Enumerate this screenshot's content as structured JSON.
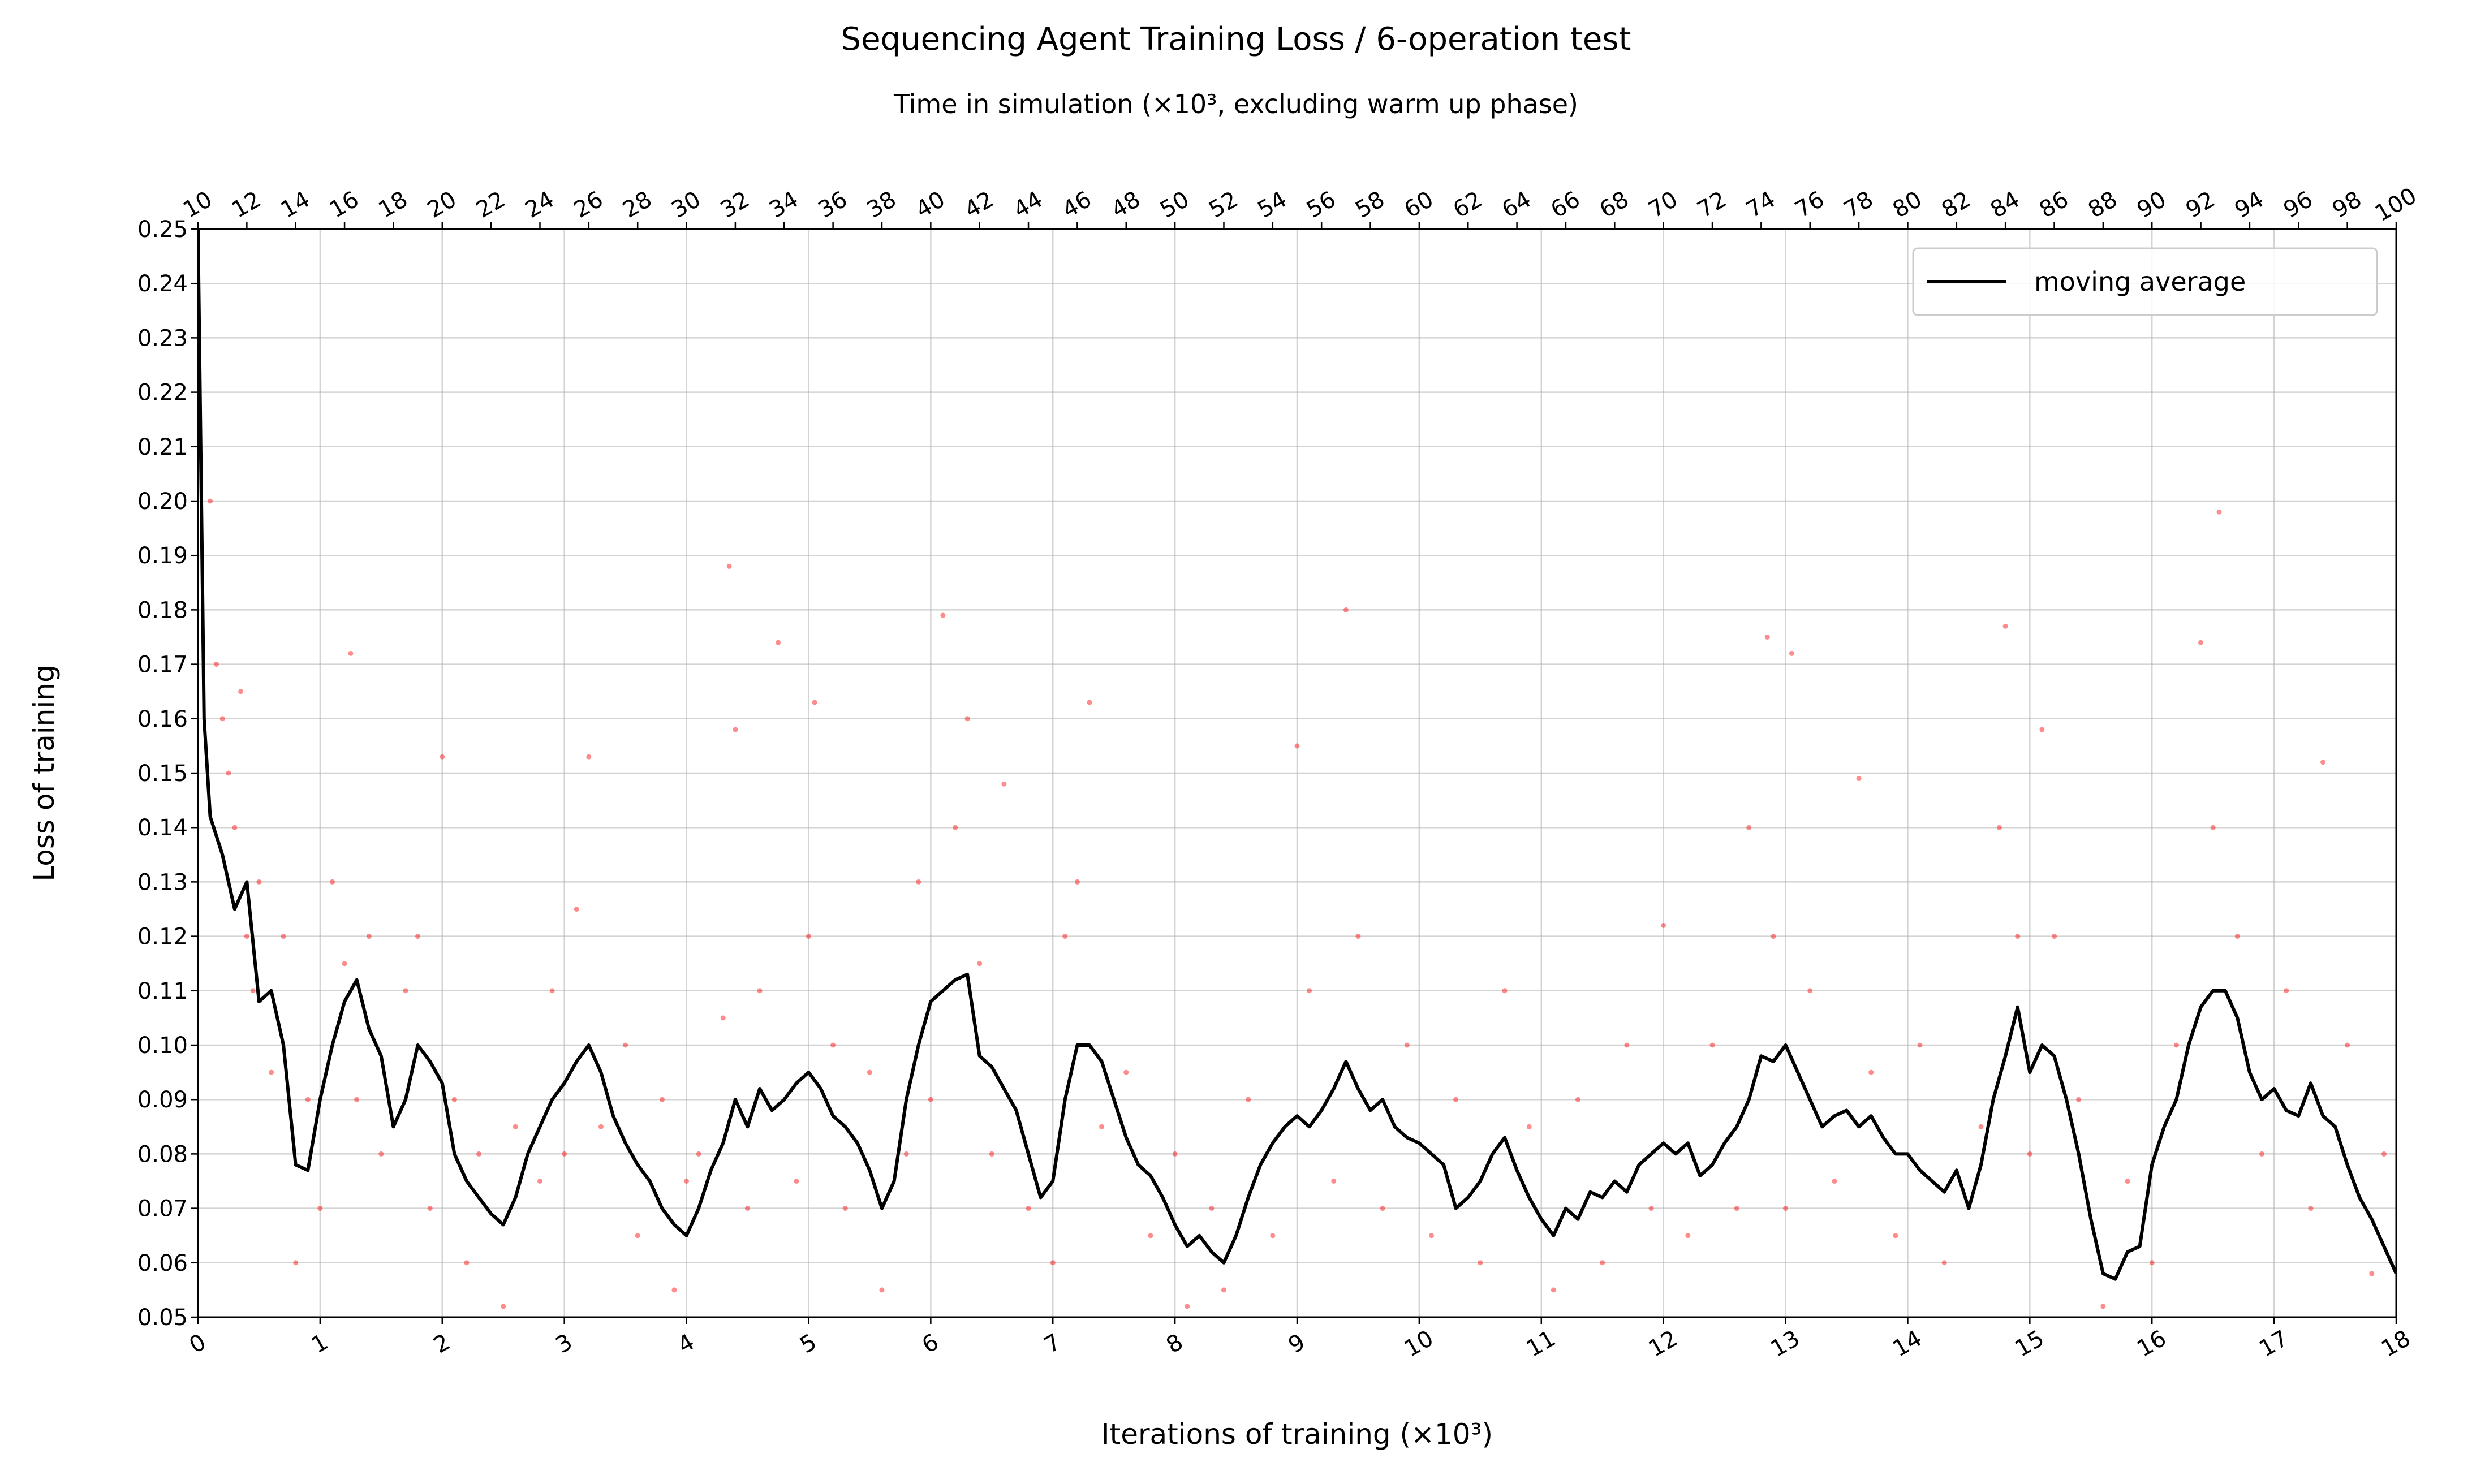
{
  "chart_data": {
    "type": "line",
    "title": "Sequencing Agent Training Loss / 6-operation test",
    "x2label": "Time in simulation (×10³, excluding warm up phase)",
    "xlabel": "Iterations of training (×10³)",
    "ylabel": "Loss of training",
    "xlim": [
      0,
      18
    ],
    "xticks": [
      0,
      1,
      2,
      3,
      4,
      5,
      6,
      7,
      8,
      9,
      10,
      11,
      12,
      13,
      14,
      15,
      16,
      17,
      18
    ],
    "x2lim": [
      10,
      100
    ],
    "x2ticks": [
      10,
      12,
      14,
      16,
      18,
      20,
      22,
      24,
      26,
      28,
      30,
      32,
      34,
      36,
      38,
      40,
      42,
      44,
      46,
      48,
      50,
      52,
      54,
      56,
      58,
      60,
      62,
      64,
      66,
      68,
      70,
      72,
      74,
      76,
      78,
      80,
      82,
      84,
      86,
      88,
      90,
      92,
      94,
      96,
      98,
      100
    ],
    "ylim": [
      0.05,
      0.25
    ],
    "yticks": [
      0.05,
      0.06,
      0.07,
      0.08,
      0.09,
      {
        "value": 0.1,
        "label": "0.10"
      },
      0.11,
      0.12,
      0.13,
      0.14,
      0.15,
      0.16,
      0.17,
      0.18,
      0.19,
      {
        "value": 0.2,
        "label": "0.20"
      },
      0.21,
      0.22,
      0.23,
      0.24,
      0.25
    ],
    "grid": true,
    "legend": "upper right",
    "series": [
      {
        "type": "scatter",
        "color": "#ff0000",
        "x": [
          0.1,
          0.15,
          0.2,
          0.25,
          0.3,
          0.35,
          0.4,
          0.45,
          0.5,
          0.6,
          0.7,
          0.8,
          0.9,
          1.0,
          1.1,
          1.2,
          1.25,
          1.3,
          1.4,
          1.5,
          1.7,
          1.8,
          1.9,
          2.0,
          2.1,
          2.2,
          2.3,
          2.5,
          2.6,
          2.8,
          2.9,
          3.0,
          3.1,
          3.2,
          3.3,
          3.5,
          3.6,
          3.8,
          3.9,
          4.0,
          4.1,
          4.3,
          4.35,
          4.4,
          4.5,
          4.6,
          4.75,
          4.9,
          5.0,
          5.05,
          5.2,
          5.3,
          5.5,
          5.6,
          5.8,
          5.9,
          6.0,
          6.1,
          6.2,
          6.3,
          6.4,
          6.5,
          6.6,
          6.8,
          7.0,
          7.1,
          7.2,
          7.3,
          7.4,
          7.6,
          7.8,
          8.0,
          8.1,
          8.3,
          8.4,
          8.6,
          8.8,
          9.0,
          9.1,
          9.3,
          9.4,
          9.5,
          9.7,
          9.9,
          10.1,
          10.3,
          10.5,
          10.7,
          10.9,
          11.1,
          11.3,
          11.5,
          11.7,
          11.9,
          12.0,
          12.2,
          12.4,
          12.6,
          12.7,
          12.85,
          12.9,
          13.0,
          13.05,
          13.2,
          13.4,
          13.6,
          13.7,
          13.9,
          14.1,
          14.3,
          14.6,
          14.75,
          14.8,
          14.9,
          15.0,
          15.1,
          15.2,
          15.4,
          15.6,
          15.8,
          16.0,
          16.2,
          16.4,
          16.5,
          16.55,
          16.7,
          16.9,
          17.1,
          17.3,
          17.4,
          17.6,
          17.8,
          17.9
        ],
        "values": [
          0.2,
          0.17,
          0.16,
          0.15,
          0.14,
          0.165,
          0.12,
          0.11,
          0.13,
          0.095,
          0.12,
          0.06,
          0.09,
          0.07,
          0.13,
          0.115,
          0.172,
          0.09,
          0.12,
          0.08,
          0.11,
          0.12,
          0.07,
          0.153,
          0.09,
          0.06,
          0.08,
          0.052,
          0.085,
          0.075,
          0.11,
          0.08,
          0.125,
          0.153,
          0.085,
          0.1,
          0.065,
          0.09,
          0.055,
          0.075,
          0.08,
          0.105,
          0.188,
          0.158,
          0.07,
          0.11,
          0.174,
          0.075,
          0.12,
          0.163,
          0.1,
          0.07,
          0.095,
          0.055,
          0.08,
          0.13,
          0.09,
          0.179,
          0.14,
          0.16,
          0.115,
          0.08,
          0.148,
          0.07,
          0.06,
          0.12,
          0.13,
          0.163,
          0.085,
          0.095,
          0.065,
          0.08,
          0.052,
          0.07,
          0.055,
          0.09,
          0.065,
          0.155,
          0.11,
          0.075,
          0.18,
          0.12,
          0.07,
          0.1,
          0.065,
          0.09,
          0.06,
          0.11,
          0.085,
          0.055,
          0.09,
          0.06,
          0.1,
          0.07,
          0.122,
          0.065,
          0.1,
          0.07,
          0.14,
          0.175,
          0.12,
          0.07,
          0.172,
          0.11,
          0.075,
          0.149,
          0.095,
          0.065,
          0.1,
          0.06,
          0.085,
          0.14,
          0.177,
          0.12,
          0.08,
          0.158,
          0.12,
          0.09,
          0.052,
          0.075,
          0.06,
          0.1,
          0.174,
          0.14,
          0.198,
          0.12,
          0.08,
          0.11,
          0.07,
          0.152,
          0.1,
          0.058,
          0.08
        ]
      },
      {
        "type": "line",
        "name": "moving average",
        "color": "#000000",
        "x": [
          0,
          0.05,
          0.1,
          0.2,
          0.3,
          0.4,
          0.5,
          0.6,
          0.7,
          0.8,
          0.9,
          1.0,
          1.1,
          1.2,
          1.3,
          1.4,
          1.5,
          1.6,
          1.7,
          1.8,
          1.9,
          2.0,
          2.1,
          2.2,
          2.3,
          2.4,
          2.5,
          2.6,
          2.7,
          2.8,
          2.9,
          3.0,
          3.1,
          3.2,
          3.3,
          3.4,
          3.5,
          3.6,
          3.7,
          3.8,
          3.9,
          4.0,
          4.1,
          4.2,
          4.3,
          4.4,
          4.5,
          4.6,
          4.7,
          4.8,
          4.9,
          5.0,
          5.1,
          5.2,
          5.3,
          5.4,
          5.5,
          5.6,
          5.7,
          5.8,
          5.9,
          6.0,
          6.1,
          6.2,
          6.3,
          6.4,
          6.5,
          6.6,
          6.7,
          6.8,
          6.9,
          7.0,
          7.1,
          7.2,
          7.3,
          7.4,
          7.5,
          7.6,
          7.7,
          7.8,
          7.9,
          8.0,
          8.1,
          8.2,
          8.3,
          8.4,
          8.5,
          8.6,
          8.7,
          8.8,
          8.9,
          9.0,
          9.1,
          9.2,
          9.3,
          9.4,
          9.5,
          9.6,
          9.7,
          9.8,
          9.9,
          10.0,
          10.1,
          10.2,
          10.3,
          10.4,
          10.5,
          10.6,
          10.7,
          10.8,
          10.9,
          11.0,
          11.1,
          11.2,
          11.3,
          11.4,
          11.5,
          11.6,
          11.7,
          11.8,
          11.9,
          12.0,
          12.1,
          12.2,
          12.3,
          12.4,
          12.5,
          12.6,
          12.7,
          12.8,
          12.9,
          13.0,
          13.1,
          13.2,
          13.3,
          13.4,
          13.5,
          13.6,
          13.7,
          13.8,
          13.9,
          14.0,
          14.1,
          14.2,
          14.3,
          14.4,
          14.5,
          14.6,
          14.7,
          14.8,
          14.9,
          15.0,
          15.1,
          15.2,
          15.3,
          15.4,
          15.5,
          15.6,
          15.7,
          15.8,
          15.9,
          16.0,
          16.1,
          16.2,
          16.3,
          16.4,
          16.5,
          16.6,
          16.7,
          16.8,
          16.9,
          17.0,
          17.1,
          17.2,
          17.3,
          17.4,
          17.5,
          17.6,
          17.7,
          17.8,
          17.9,
          18.0
        ],
        "values": [
          0.25,
          0.16,
          0.142,
          0.135,
          0.125,
          0.13,
          0.108,
          0.11,
          0.1,
          0.078,
          0.077,
          0.09,
          0.1,
          0.108,
          0.112,
          0.103,
          0.098,
          0.085,
          0.09,
          0.1,
          0.097,
          0.093,
          0.08,
          0.075,
          0.072,
          0.069,
          0.067,
          0.072,
          0.08,
          0.085,
          0.09,
          0.093,
          0.097,
          0.1,
          0.095,
          0.087,
          0.082,
          0.078,
          0.075,
          0.07,
          0.067,
          0.065,
          0.07,
          0.077,
          0.082,
          0.09,
          0.085,
          0.092,
          0.088,
          0.09,
          0.093,
          0.095,
          0.092,
          0.087,
          0.085,
          0.082,
          0.077,
          0.07,
          0.075,
          0.09,
          0.1,
          0.108,
          0.11,
          0.112,
          0.113,
          0.098,
          0.096,
          0.092,
          0.088,
          0.08,
          0.072,
          0.075,
          0.09,
          0.1,
          0.1,
          0.097,
          0.09,
          0.083,
          0.078,
          0.076,
          0.072,
          0.067,
          0.063,
          0.065,
          0.062,
          0.06,
          0.065,
          0.072,
          0.078,
          0.082,
          0.085,
          0.087,
          0.085,
          0.088,
          0.092,
          0.097,
          0.092,
          0.088,
          0.09,
          0.085,
          0.083,
          0.082,
          0.08,
          0.078,
          0.07,
          0.072,
          0.075,
          0.08,
          0.083,
          0.077,
          0.072,
          0.068,
          0.065,
          0.07,
          0.068,
          0.073,
          0.072,
          0.075,
          0.073,
          0.078,
          0.08,
          0.082,
          0.08,
          0.082,
          0.076,
          0.078,
          0.082,
          0.085,
          0.09,
          0.098,
          0.097,
          0.1,
          0.095,
          0.09,
          0.085,
          0.087,
          0.088,
          0.085,
          0.087,
          0.083,
          0.08,
          0.08,
          0.077,
          0.075,
          0.073,
          0.077,
          0.07,
          0.078,
          0.09,
          0.098,
          0.107,
          0.095,
          0.1,
          0.098,
          0.09,
          0.08,
          0.068,
          0.058,
          0.057,
          0.062,
          0.063,
          0.078,
          0.085,
          0.09,
          0.1,
          0.107,
          0.11,
          0.11,
          0.105,
          0.095,
          0.09,
          0.092,
          0.088,
          0.087,
          0.093,
          0.087,
          0.085,
          0.078,
          0.072,
          0.068,
          0.063,
          0.058
        ]
      }
    ]
  }
}
